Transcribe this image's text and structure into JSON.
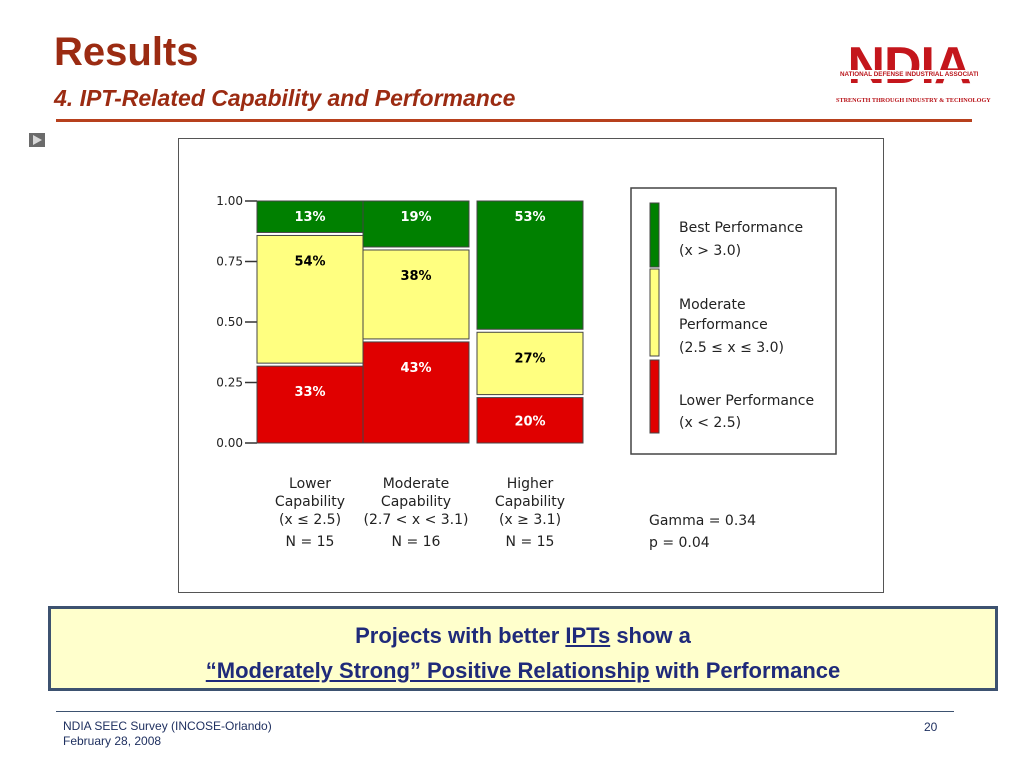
{
  "header": {
    "title": "Results",
    "subtitle": "4. IPT-Related Capability and Performance"
  },
  "logo": {
    "word": "NDIA",
    "association": "NATIONAL DEFENSE INDUSTRIAL ASSOCIATION",
    "tagline": "STRENGTH THROUGH INDUSTRY & TECHNOLOGY",
    "color": "#c4161c"
  },
  "chart_data": {
    "type": "bar",
    "stacked": true,
    "y_ticks": [
      "0.00",
      "0.25",
      "0.50",
      "0.75",
      "1.00"
    ],
    "ylim": [
      0,
      1
    ],
    "categories": [
      {
        "lines": [
          "Lower",
          "Capability",
          "(x ≤ 2.5)"
        ],
        "n": "N = 15"
      },
      {
        "lines": [
          "Moderate",
          "Capability",
          "(2.7 < x < 3.1)"
        ],
        "n": "N = 16"
      },
      {
        "lines": [
          "Higher",
          "Capability",
          "(x ≥ 3.1)"
        ],
        "n": "N = 15"
      }
    ],
    "series": [
      {
        "key": "lower",
        "color": "#e00000",
        "values": [
          0.33,
          0.43,
          0.2
        ],
        "labels": [
          "33%",
          "43%",
          "20%"
        ]
      },
      {
        "key": "moderate",
        "color": "#ffff80",
        "values": [
          0.54,
          0.38,
          0.27
        ],
        "labels": [
          "54%",
          "38%",
          "27%"
        ]
      },
      {
        "key": "best",
        "color": "#008000",
        "values": [
          0.13,
          0.19,
          0.53
        ],
        "labels": [
          "13%",
          "19%",
          "53%"
        ]
      }
    ],
    "legend": {
      "placement": "right",
      "entries": [
        {
          "color": "#008000",
          "lines": [
            "Best Performance",
            "(x > 3.0)"
          ]
        },
        {
          "color": "#ffff80",
          "lines": [
            "Moderate",
            "Performance",
            "(2.5 ≤ x ≤ 3.0)"
          ]
        },
        {
          "color": "#e00000",
          "lines": [
            "Lower Performance",
            "(x < 2.5)"
          ]
        }
      ]
    },
    "stats": [
      "Gamma = 0.34",
      "p = 0.04"
    ]
  },
  "callout": {
    "line1_pre": "Projects with better ",
    "line1_link": "IPTs",
    "line1_post": " show a",
    "line2_link": "“Moderately Strong” Positive Relationship",
    "line2_post": " with  Performance"
  },
  "footer": {
    "source": "NDIA SEEC Survey (INCOSE-Orlando)",
    "date": "February 28, 2008",
    "page_number": "20"
  }
}
